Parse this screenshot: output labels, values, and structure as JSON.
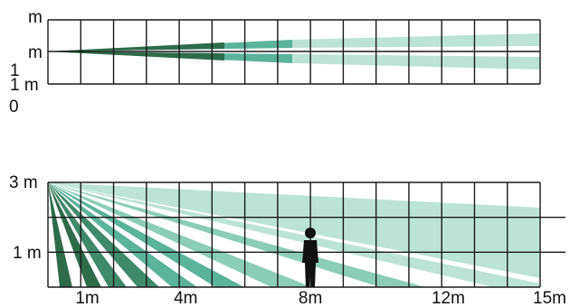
{
  "top_view": {
    "labels": {
      "left_top": "m",
      "left_mid": "m",
      "left_bot_1": "1",
      "left_bot_m": "1 m",
      "left_zero": "0"
    },
    "grid": {
      "columns": 15,
      "rows": 2
    },
    "beam_colors": [
      "#2e6b4a",
      "#5bb39a",
      "#bde3d6"
    ]
  },
  "side_view": {
    "y_labels": {
      "top": "3 m",
      "mid": "1 m"
    },
    "x_labels": [
      {
        "text": "1m",
        "at_m": 1.2
      },
      {
        "text": "4m",
        "at_m": 4.2
      },
      {
        "text": "8m",
        "at_m": 8.0
      },
      {
        "text": "12m",
        "at_m": 12.2
      },
      {
        "text": "15m",
        "at_m": 15.0
      }
    ],
    "grid": {
      "columns": 15,
      "rows": 3
    },
    "beam_colors": [
      "#2e6b4a",
      "#3f8a6a",
      "#5bb39a",
      "#8ccdb8",
      "#bde3d6"
    ],
    "person_icon": "person-silhouette-icon",
    "person_at_m": 8
  }
}
